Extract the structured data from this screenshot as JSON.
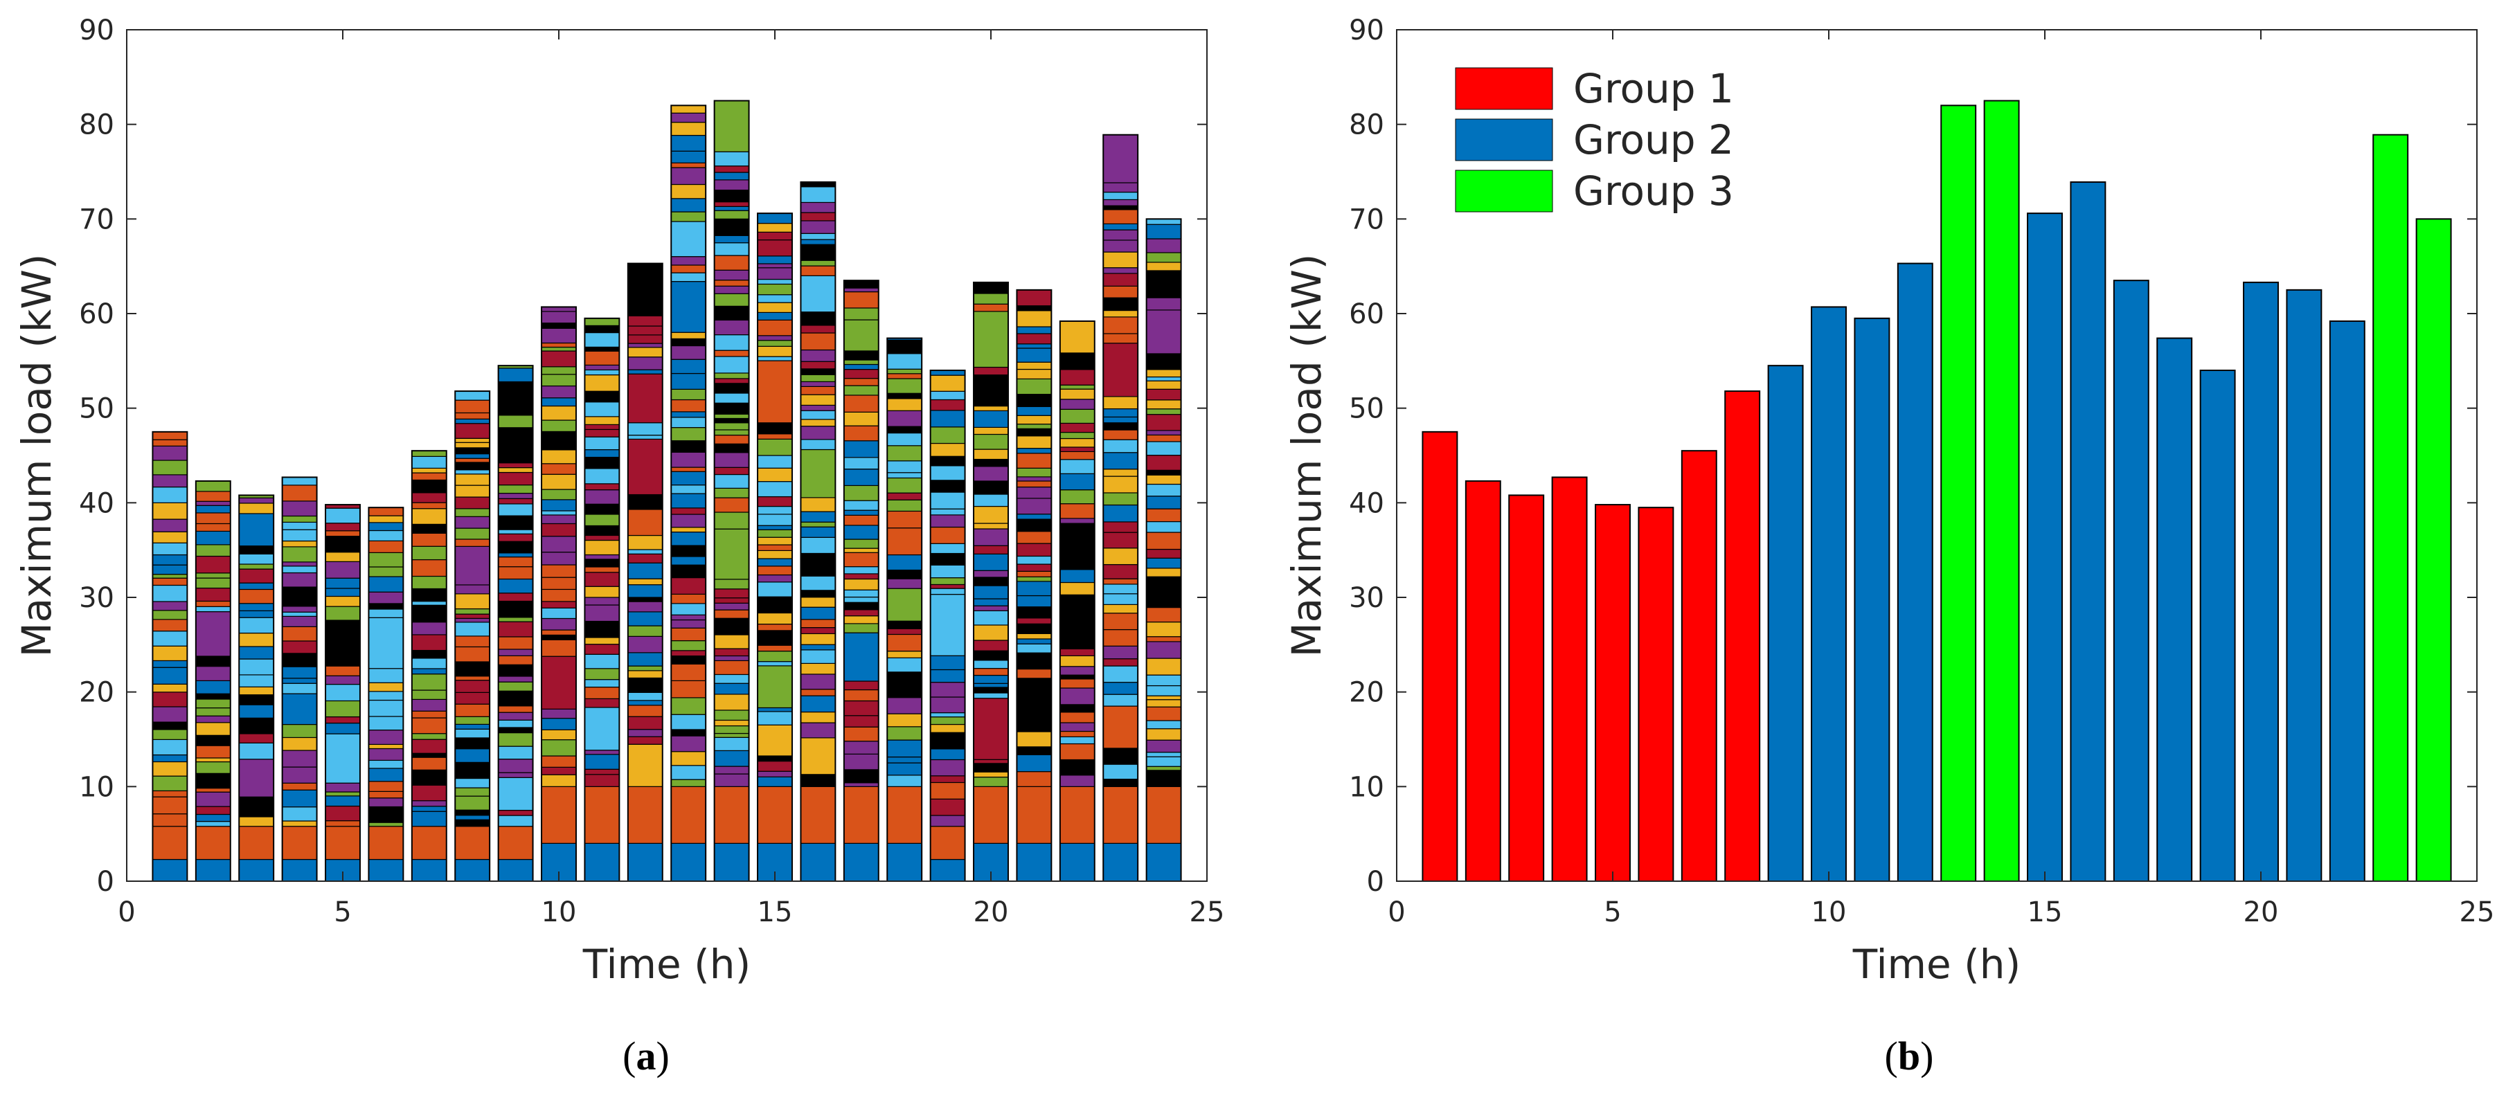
{
  "chart_data": [
    {
      "type": "bar",
      "stacked": true,
      "caption": "(a)",
      "xlabel": "Time (h)",
      "ylabel": "Maximum load (kW)",
      "xlim": [
        0,
        25
      ],
      "ylim": [
        0,
        90
      ],
      "xticks": [
        "0",
        "5",
        "10",
        "15",
        "20",
        "25"
      ],
      "yticks": [
        "0",
        "10",
        "20",
        "30",
        "40",
        "50",
        "60",
        "70",
        "80",
        "90"
      ],
      "x": [
        1,
        2,
        3,
        4,
        5,
        6,
        7,
        8,
        9,
        10,
        11,
        12,
        13,
        14,
        15,
        16,
        17,
        18,
        19,
        20,
        21,
        22,
        23,
        24
      ],
      "totals": [
        47.5,
        42.3,
        40.8,
        42.7,
        39.8,
        39.5,
        45.5,
        51.8,
        54.5,
        60.7,
        59.5,
        65.3,
        82.0,
        82.5,
        70.6,
        73.9,
        63.5,
        57.4,
        54.0,
        63.3,
        62.5,
        59.2,
        78.9,
        70.0
      ],
      "series_colors": [
        "#0072BD",
        "#D95319",
        "#EDB120",
        "#7E2F8E",
        "#77AC30",
        "#4DBEEE",
        "#A2142F",
        "#000000"
      ],
      "grid": false
    },
    {
      "type": "bar",
      "caption": "(b)",
      "xlabel": "Time (h)",
      "ylabel": "Maximum load (kW)",
      "xlim": [
        0,
        25
      ],
      "ylim": [
        0,
        90
      ],
      "xticks": [
        "0",
        "5",
        "10",
        "15",
        "20",
        "25"
      ],
      "yticks": [
        "0",
        "10",
        "20",
        "30",
        "40",
        "50",
        "60",
        "70",
        "80",
        "90"
      ],
      "x": [
        1,
        2,
        3,
        4,
        5,
        6,
        7,
        8,
        9,
        10,
        11,
        12,
        13,
        14,
        15,
        16,
        17,
        18,
        19,
        20,
        21,
        22,
        23,
        24
      ],
      "values": [
        47.5,
        42.3,
        40.8,
        42.7,
        39.8,
        39.5,
        45.5,
        51.8,
        54.5,
        60.7,
        59.5,
        65.3,
        82.0,
        82.5,
        70.6,
        73.9,
        63.5,
        57.4,
        54.0,
        63.3,
        62.5,
        59.2,
        78.9,
        70.0
      ],
      "groups": [
        1,
        1,
        1,
        1,
        1,
        1,
        1,
        1,
        2,
        2,
        2,
        2,
        3,
        3,
        2,
        2,
        2,
        2,
        2,
        2,
        2,
        2,
        3,
        3
      ],
      "legend": {
        "placement": "top-left",
        "entries": [
          {
            "name": "Group 1",
            "color": "#FF0000"
          },
          {
            "name": "Group 2",
            "color": "#0072BD"
          },
          {
            "name": "Group 3",
            "color": "#00FF00"
          }
        ]
      },
      "grid": false
    }
  ]
}
